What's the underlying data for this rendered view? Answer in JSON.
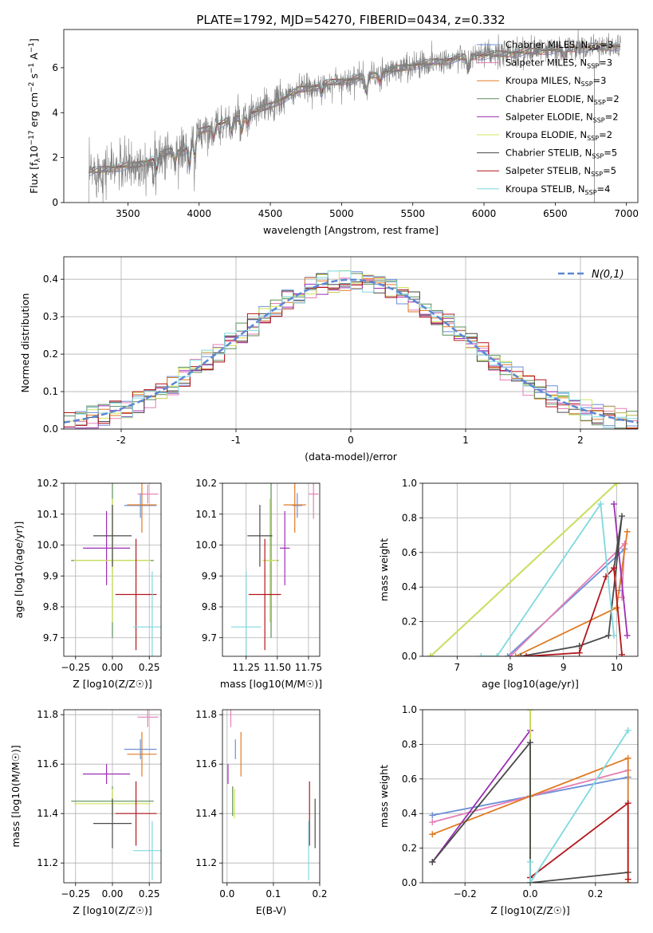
{
  "title": "PLATE=1792, MJD=54270, FIBERID=0434, z=0.332",
  "models": [
    {
      "name": "Chabrier MILES, N$_{SSP}$=3",
      "label_main": "Chabrier MILES, N",
      "label_sub": "SSP",
      "label_tail": "=3",
      "color": "#6a8fd8"
    },
    {
      "name": "Salpeter MILES, N$_{SSP}$=3",
      "label_main": "Salpeter MILES, N",
      "label_sub": "SSP",
      "label_tail": "=3",
      "color": "#e57eb6"
    },
    {
      "name": "Kroupa MILES, N$_{SSP}$=3",
      "label_main": "Kroupa MILES, N",
      "label_sub": "SSP",
      "label_tail": "=3",
      "color": "#e07a22"
    },
    {
      "name": "Chabrier ELODIE, N$_{SSP}$=2",
      "label_main": "Chabrier ELODIE, N",
      "label_sub": "SSP",
      "label_tail": "=2",
      "color": "#5c8e5a"
    },
    {
      "name": "Salpeter ELODIE, N$_{SSP}$=2",
      "label_main": "Salpeter ELODIE, N",
      "label_sub": "SSP",
      "label_tail": "=2",
      "color": "#9c2fb5"
    },
    {
      "name": "Kroupa ELODIE, N$_{SSP}$=2",
      "label_main": "Kroupa ELODIE, N",
      "label_sub": "SSP",
      "label_tail": "=2",
      "color": "#cfe35a"
    },
    {
      "name": "Chabrier STELIB, N$_{SSP}$=5",
      "label_main": "Chabrier STELIB, N",
      "label_sub": "SSP",
      "label_tail": "=5",
      "color": "#4a4a4a"
    },
    {
      "name": "Salpeter STELIB, N$_{SSP}$=5",
      "label_main": "Salpeter STELIB, N",
      "label_sub": "SSP",
      "label_tail": "=5",
      "color": "#b3171d"
    },
    {
      "name": "Kroupa STELIB, N$_{SSP}$=4",
      "label_main": "Kroupa STELIB, N",
      "label_sub": "SSP",
      "label_tail": "=4",
      "color": "#7fd8de"
    }
  ],
  "chart_data": [
    {
      "id": "spectrum",
      "type": "line",
      "title": "PLATE=1792, MJD=54270, FIBERID=0434, z=0.332",
      "xlabel": "wavelength [Angstrom, rest frame]",
      "ylabel_main": "Flux [f",
      "ylabel_sub": "λ",
      "ylabel_tail": "10",
      "ylabel_exp1": "−17",
      "ylabel_mid": " erg cm",
      "ylabel_exp2": "−2",
      "ylabel_mid2": " s",
      "ylabel_exp3": "−1",
      "ylabel_end": " A",
      "ylabel_exp4": "−1",
      "ylabel_close": "]",
      "xlim": [
        3050,
        7080
      ],
      "ylim": [
        0,
        7.7
      ],
      "xticks": [
        3500,
        4000,
        4500,
        5000,
        5500,
        6000,
        6500,
        7000
      ],
      "yticks": [
        0,
        2,
        4,
        6
      ],
      "observed_color": "#808080",
      "continuum_anchors": [
        [
          3225,
          1.35
        ],
        [
          3400,
          1.55
        ],
        [
          3550,
          1.65
        ],
        [
          3650,
          1.85
        ],
        [
          3800,
          2.3
        ],
        [
          3900,
          2.3
        ],
        [
          3950,
          3.0
        ],
        [
          4100,
          3.4
        ],
        [
          4300,
          3.8
        ],
        [
          4500,
          4.3
        ],
        [
          4700,
          5.0
        ],
        [
          4900,
          5.3
        ],
        [
          5100,
          5.5
        ],
        [
          5300,
          5.8
        ],
        [
          5500,
          6.1
        ],
        [
          5700,
          6.3
        ],
        [
          5900,
          6.5
        ],
        [
          6100,
          6.6
        ],
        [
          6300,
          6.7
        ],
        [
          6500,
          6.8
        ],
        [
          6700,
          6.9
        ],
        [
          6950,
          6.95
        ]
      ],
      "absorption_lines": [
        [
          3700,
          0.6
        ],
        [
          3830,
          0.5
        ],
        [
          3934,
          1.2
        ],
        [
          3969,
          1.0
        ],
        [
          4102,
          0.5
        ],
        [
          4227,
          0.5
        ],
        [
          4300,
          0.6
        ],
        [
          4340,
          0.4
        ],
        [
          4861,
          0.4
        ],
        [
          5175,
          0.7
        ],
        [
          5270,
          0.4
        ],
        [
          5890,
          0.6
        ],
        [
          6563,
          0.4
        ]
      ],
      "wavelength_start": 3225,
      "wavelength_end": 6960
    },
    {
      "id": "residual-hist",
      "type": "bar",
      "xlabel": "(data-model)/error",
      "ylabel": "Normed distribution",
      "xlim": [
        -2.5,
        2.5
      ],
      "ylim": [
        0,
        0.46
      ],
      "xticks": [
        -2,
        -1,
        0,
        1,
        2
      ],
      "yticks": [
        0.0,
        0.1,
        0.2,
        0.3,
        0.4
      ],
      "legend": "N(0,1)",
      "legend_position": "upper right",
      "normal_curve_color": "#5b87d4",
      "bin_width": 0.1
    },
    {
      "id": "age-vs-metallicity",
      "type": "scatter",
      "xlabel": "Z [log10(Z/Z☉)]",
      "ylabel": "age [log10(age/yr)]",
      "xlim": [
        -0.33,
        0.33
      ],
      "ylim": [
        9.64,
        10.2
      ],
      "xticks": [
        -0.25,
        0.0,
        0.25
      ],
      "xtick_labels": [
        "−0.25",
        "0.00",
        "0.25"
      ],
      "yticks": [
        9.7,
        9.8,
        9.9,
        10.0,
        10.1,
        10.2
      ],
      "points": [
        {
          "model": 0,
          "x": 0.19,
          "y": 10.128,
          "xerr": 0.11,
          "yerr": 0.04
        },
        {
          "model": 1,
          "x": 0.24,
          "y": 10.165,
          "xerr": 0.07,
          "yerr": 0.03
        },
        {
          "model": 2,
          "x": 0.2,
          "y": 10.13,
          "xerr": 0.1,
          "yerr": 0.09
        },
        {
          "model": 3,
          "x": 0.0,
          "y": 9.95,
          "xerr": 0.28,
          "yerr": 0.25
        },
        {
          "model": 4,
          "x": -0.04,
          "y": 9.99,
          "xerr": 0.16,
          "yerr": 0.12
        },
        {
          "model": 5,
          "x": 0.0,
          "y": 9.95,
          "xerr": 0.26,
          "yerr": 0.2
        },
        {
          "model": 6,
          "x": 0.0,
          "y": 10.03,
          "xerr": 0.13,
          "yerr": 0.1
        },
        {
          "model": 7,
          "x": 0.16,
          "y": 9.84,
          "xerr": 0.14,
          "yerr": 0.18
        },
        {
          "model": 8,
          "x": 0.27,
          "y": 9.735,
          "xerr": 0.13,
          "yerr": 0.18
        }
      ]
    },
    {
      "id": "age-vs-mass",
      "type": "scatter",
      "xlabel": "mass [log10(M/M☉)]",
      "xlim": [
        11.06,
        11.84
      ],
      "ylim": [
        9.64,
        10.2
      ],
      "xticks": [
        11.25,
        11.5,
        11.75
      ],
      "xtick_labels": [
        "11.25",
        "11.50",
        "11.75"
      ],
      "yticks": [
        9.7,
        9.8,
        9.9,
        10.0,
        10.1,
        10.2
      ],
      "points": [
        {
          "model": 0,
          "x": 11.66,
          "y": 10.128,
          "xerr": 0.04,
          "yerr": 0.04
        },
        {
          "model": 1,
          "x": 11.79,
          "y": 10.165,
          "xerr": 0.04,
          "yerr": 0.08
        },
        {
          "model": 2,
          "x": 11.64,
          "y": 10.13,
          "xerr": 0.09,
          "yerr": 0.09
        },
        {
          "model": 3,
          "x": 11.45,
          "y": 9.95,
          "xerr": 0.06,
          "yerr": 0.25
        },
        {
          "model": 4,
          "x": 11.56,
          "y": 9.99,
          "xerr": 0.04,
          "yerr": 0.12
        },
        {
          "model": 5,
          "x": 11.44,
          "y": 9.95,
          "xerr": 0.06,
          "yerr": 0.2
        },
        {
          "model": 6,
          "x": 11.36,
          "y": 10.03,
          "xerr": 0.1,
          "yerr": 0.1
        },
        {
          "model": 7,
          "x": 11.4,
          "y": 9.84,
          "xerr": 0.13,
          "yerr": 0.18
        },
        {
          "model": 8,
          "x": 11.25,
          "y": 9.735,
          "xerr": 0.12,
          "yerr": 0.18
        }
      ]
    },
    {
      "id": "massweight-vs-age",
      "type": "line",
      "xlabel": "age [log10(age/yr)]",
      "ylabel": "mass weight",
      "xlim": [
        6.35,
        10.4
      ],
      "ylim": [
        0,
        1
      ],
      "xticks": [
        7,
        8,
        9,
        10
      ],
      "yticks": [
        0.0,
        0.2,
        0.4,
        0.6,
        0.8,
        1.0
      ],
      "series": [
        {
          "model": 0,
          "x": [
            7.95,
            10.15,
            10.05
          ],
          "y": [
            0.0,
            0.62,
            0.38
          ]
        },
        {
          "model": 1,
          "x": [
            8.0,
            10.15,
            10.1
          ],
          "y": [
            0.0,
            0.65,
            0.34
          ]
        },
        {
          "model": 2,
          "x": [
            8.1,
            10.0,
            10.2
          ],
          "y": [
            0.0,
            0.28,
            0.72
          ]
        },
        {
          "model": 3,
          "x": [
            6.5,
            10.0
          ],
          "y": [
            0.0,
            1.0
          ]
        },
        {
          "model": 4,
          "x": [
            9.95,
            10.2
          ],
          "y": [
            0.88,
            0.12
          ]
        },
        {
          "model": 5,
          "x": [
            6.5,
            10.0
          ],
          "y": [
            0.0,
            1.0
          ]
        },
        {
          "model": 6,
          "x": [
            8.2,
            9.3,
            9.85,
            10.1,
            9.95
          ],
          "y": [
            0.0,
            0.06,
            0.12,
            0.81,
            0.51
          ]
        },
        {
          "model": 7,
          "x": [
            8.3,
            9.3,
            9.8,
            9.95,
            10.1
          ],
          "y": [
            0.0,
            0.02,
            0.46,
            0.51,
            0.01
          ]
        },
        {
          "model": 8,
          "x": [
            7.45,
            7.75,
            9.7,
            9.95
          ],
          "y": [
            0.0,
            0.0,
            0.88,
            0.12
          ]
        }
      ]
    },
    {
      "id": "mass-vs-metallicity",
      "type": "scatter",
      "xlabel": "Z [log10(Z/Z☉)]",
      "ylabel": "mass [log10(M/M☉)]",
      "xlim": [
        -0.33,
        0.33
      ],
      "ylim": [
        11.12,
        11.82
      ],
      "xticks": [
        -0.25,
        0.0,
        0.25
      ],
      "xtick_labels": [
        "−0.25",
        "0.00",
        "0.25"
      ],
      "yticks": [
        11.2,
        11.4,
        11.6,
        11.8
      ],
      "points": [
        {
          "model": 0,
          "x": 0.19,
          "y": 11.66,
          "xerr": 0.11,
          "yerr": 0.04
        },
        {
          "model": 1,
          "x": 0.24,
          "y": 11.79,
          "xerr": 0.07,
          "yerr": 0.04
        },
        {
          "model": 2,
          "x": 0.2,
          "y": 11.64,
          "xerr": 0.1,
          "yerr": 0.09
        },
        {
          "model": 3,
          "x": 0.0,
          "y": 11.45,
          "xerr": 0.28,
          "yerr": 0.06
        },
        {
          "model": 4,
          "x": -0.04,
          "y": 11.56,
          "xerr": 0.16,
          "yerr": 0.04
        },
        {
          "model": 5,
          "x": 0.0,
          "y": 11.44,
          "xerr": 0.26,
          "yerr": 0.06
        },
        {
          "model": 6,
          "x": 0.0,
          "y": 11.36,
          "xerr": 0.13,
          "yerr": 0.1
        },
        {
          "model": 7,
          "x": 0.16,
          "y": 11.4,
          "xerr": 0.14,
          "yerr": 0.13
        },
        {
          "model": 8,
          "x": 0.27,
          "y": 11.25,
          "xerr": 0.13,
          "yerr": 0.12
        }
      ]
    },
    {
      "id": "mass-vs-ebv",
      "type": "scatter",
      "xlabel": "E(B-V)",
      "xlim": [
        -0.01,
        0.2
      ],
      "ylim": [
        11.12,
        11.82
      ],
      "xticks": [
        0.0,
        0.1,
        0.2
      ],
      "xtick_labels": [
        "0.0",
        "0.1",
        "0.2"
      ],
      "yticks": [
        11.2,
        11.4,
        11.6,
        11.8
      ],
      "points": [
        {
          "model": 0,
          "x": 0.018,
          "y": 11.66,
          "yerr": 0.04
        },
        {
          "model": 1,
          "x": 0.008,
          "y": 11.79,
          "yerr": 0.04
        },
        {
          "model": 2,
          "x": 0.03,
          "y": 11.64,
          "yerr": 0.09
        },
        {
          "model": 3,
          "x": 0.012,
          "y": 11.45,
          "yerr": 0.06
        },
        {
          "model": 4,
          "x": 0.002,
          "y": 11.56,
          "yerr": 0.04
        },
        {
          "model": 5,
          "x": 0.016,
          "y": 11.44,
          "yerr": 0.06
        },
        {
          "model": 6,
          "x": 0.19,
          "y": 11.36,
          "yerr": 0.1
        },
        {
          "model": 7,
          "x": 0.178,
          "y": 11.4,
          "yerr": 0.13
        },
        {
          "model": 8,
          "x": 0.176,
          "y": 11.25,
          "yerr": 0.12
        }
      ]
    },
    {
      "id": "massweight-vs-metallicity",
      "type": "line",
      "xlabel": "Z [log10(Z/Z☉)]",
      "ylabel": "mass weight",
      "xlim": [
        -0.33,
        0.33
      ],
      "ylim": [
        0,
        1
      ],
      "xticks": [
        -0.2,
        0.0,
        0.2
      ],
      "xtick_labels": [
        "−0.2",
        "0.0",
        "0.2"
      ],
      "yticks": [
        0.0,
        0.2,
        0.4,
        0.6,
        0.8,
        1.0
      ],
      "series": [
        {
          "model": 0,
          "x": [
            -0.3,
            0.0,
            0.3
          ],
          "y": [
            0.39,
            0.5,
            0.61
          ]
        },
        {
          "model": 1,
          "x": [
            -0.3,
            0.0,
            0.3
          ],
          "y": [
            0.35,
            0.5,
            0.65
          ]
        },
        {
          "model": 2,
          "x": [
            -0.3,
            0.0,
            0.3,
            0.3
          ],
          "y": [
            0.28,
            0.5,
            0.72,
            0.0
          ]
        },
        {
          "model": 3,
          "x": [
            0.0,
            0.0
          ],
          "y": [
            0.0,
            1.0
          ]
        },
        {
          "model": 4,
          "x": [
            -0.3,
            0.0
          ],
          "y": [
            0.12,
            0.88
          ]
        },
        {
          "model": 5,
          "x": [
            0.0,
            0.0
          ],
          "y": [
            0.0,
            1.0
          ]
        },
        {
          "model": 6,
          "x": [
            -0.3,
            0.0,
            0.0,
            0.0,
            0.3
          ],
          "y": [
            0.12,
            0.81,
            0.0,
            0.0,
            0.06
          ]
        },
        {
          "model": 7,
          "x": [
            0.0,
            0.3,
            0.3
          ],
          "y": [
            0.03,
            0.46,
            0.02
          ]
        },
        {
          "model": 8,
          "x": [
            0.0,
            0.0,
            0.3
          ],
          "y": [
            0.12,
            0.0,
            0.88
          ]
        }
      ]
    }
  ]
}
